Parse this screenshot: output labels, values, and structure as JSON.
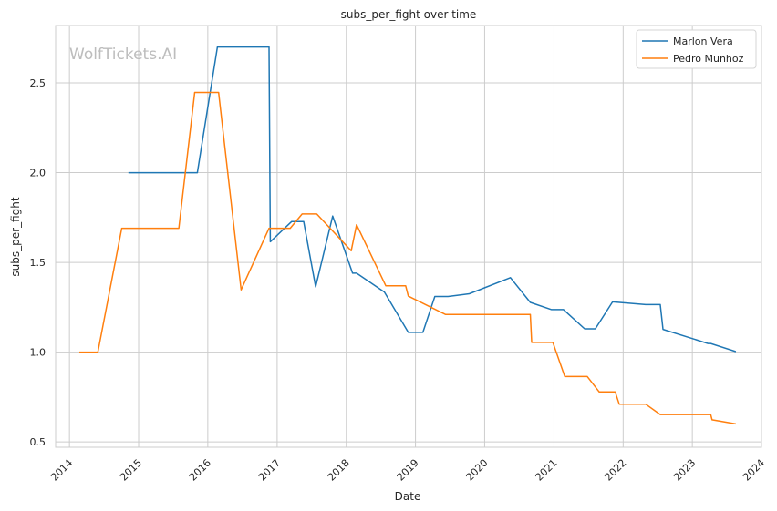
{
  "chart_data": {
    "type": "line",
    "title": "subs_per_fight over time",
    "xlabel": "Date",
    "ylabel": "subs_per_fight",
    "watermark": "WolfTickets.AI",
    "xlim": [
      "2013-10-20",
      "2024-01-01"
    ],
    "ylim": [
      0.47,
      2.82
    ],
    "grid": true,
    "legend_position": "top-right",
    "x_ticks": [
      "2014",
      "2015",
      "2016",
      "2017",
      "2018",
      "2019",
      "2020",
      "2021",
      "2022",
      "2023",
      "2024"
    ],
    "y_ticks": [
      "0.5",
      "1.0",
      "1.5",
      "2.0",
      "2.5"
    ],
    "series": [
      {
        "name": "Marlon Vera",
        "color": "#1f77b4",
        "x": [
          "2014-11-08",
          "2015-11-07",
          "2016-02-21",
          "2016-11-19",
          "2016-11-26",
          "2017-03-18",
          "2017-05-21",
          "2017-07-23",
          "2017-10-21",
          "2018-02-03",
          "2018-02-24",
          "2018-07-21",
          "2018-11-24",
          "2019-02-09",
          "2019-04-13",
          "2019-06-22",
          "2019-10-12",
          "2020-05-16",
          "2020-08-29",
          "2020-12-19",
          "2021-02-20",
          "2021-06-12",
          "2021-08-07",
          "2021-11-06",
          "2022-04-30",
          "2022-07-16",
          "2022-07-30",
          "2023-03-25",
          "2023-04-08",
          "2023-08-19"
        ],
        "y": [
          2.0,
          2.0,
          2.7,
          2.7,
          1.615,
          1.727,
          1.727,
          1.364,
          1.758,
          1.44,
          1.44,
          1.335,
          1.11,
          1.11,
          1.31,
          1.31,
          1.325,
          1.415,
          1.277,
          1.237,
          1.237,
          1.13,
          1.13,
          1.28,
          1.265,
          1.265,
          1.127,
          1.048,
          1.048,
          1.003
        ]
      },
      {
        "name": "Pedro Munhoz",
        "color": "#ff7f0e",
        "x": [
          "2014-02-22",
          "2014-05-31",
          "2014-10-04",
          "2015-08-01",
          "2015-10-24",
          "2016-02-27",
          "2016-06-25",
          "2016-11-19",
          "2017-03-11",
          "2017-05-13",
          "2017-07-29",
          "2018-01-27",
          "2018-02-24",
          "2018-07-28",
          "2018-11-10",
          "2018-11-24",
          "2019-06-08",
          "2020-08-29",
          "2020-09-05",
          "2020-12-26",
          "2021-02-27",
          "2021-06-26",
          "2021-08-28",
          "2021-11-20",
          "2021-12-11",
          "2022-04-30",
          "2022-07-16",
          "2023-04-08",
          "2023-04-15",
          "2023-08-19"
        ],
        "y": [
          1.0,
          1.0,
          1.69,
          1.69,
          2.447,
          2.447,
          1.347,
          1.69,
          1.69,
          1.77,
          1.77,
          1.565,
          1.71,
          1.37,
          1.37,
          1.312,
          1.21,
          1.21,
          1.054,
          1.054,
          0.864,
          0.864,
          0.778,
          0.778,
          0.71,
          0.71,
          0.652,
          0.652,
          0.623,
          0.6
        ]
      }
    ]
  }
}
